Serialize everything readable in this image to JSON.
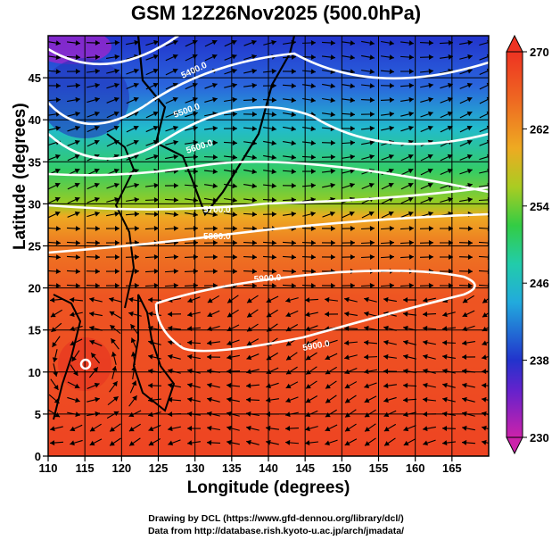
{
  "title": "GSM 12Z26Nov2025 (500.0hPa)",
  "axes": {
    "xlabel": "Longitude (degrees)",
    "ylabel": "Latitude  (degrees)",
    "xlim": [
      110,
      170
    ],
    "ylim": [
      0,
      50
    ],
    "xticks": [
      "110",
      "115",
      "120",
      "125",
      "130",
      "135",
      "140",
      "145",
      "150",
      "155",
      "160",
      "165"
    ],
    "yticks": [
      "0",
      "5",
      "10",
      "15",
      "20",
      "25",
      "30",
      "35",
      "40",
      "45"
    ]
  },
  "colorbar": {
    "min": 230,
    "max": 270,
    "labels": [
      "230",
      "238",
      "246",
      "254",
      "262",
      "270"
    ]
  },
  "contours": [
    {
      "label": "5400.0",
      "level": 5400
    },
    {
      "label": "5500.0",
      "level": 5500
    },
    {
      "label": "5600.0",
      "level": 5600
    },
    {
      "label": "5700.0",
      "level": 5700
    },
    {
      "label": "5800.0",
      "level": 5800
    },
    {
      "label": "5900.0",
      "level": 5900
    },
    {
      "label": "5900.0",
      "level": 5900
    }
  ],
  "credits": {
    "line1": "Drawing by DCL (https://www.gfd-dennou.org/library/dcl/)",
    "line2": "Data from http://database.rish.kyoto-u.ac.jp/arch/jmadata/"
  },
  "colors": {
    "warm": "#ee4422",
    "jet": "#33cc66",
    "cold": "#2244cc",
    "coldest": "#cc22aa"
  }
}
